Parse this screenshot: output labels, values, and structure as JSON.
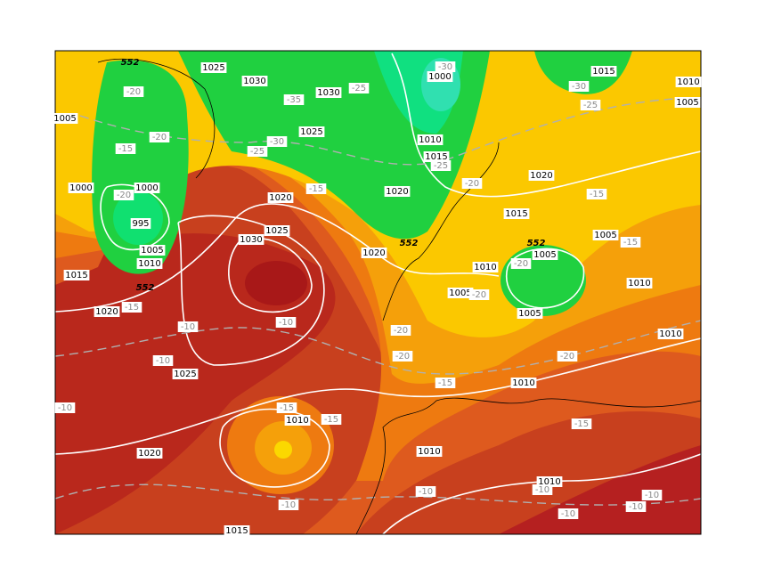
{
  "map": {
    "pressure_labels": [
      "1025",
      "1030",
      "1030",
      "1000",
      "1015",
      "1010",
      "1005",
      "1005",
      "1025",
      "1010",
      "1015",
      "1000",
      "1000",
      "995",
      "1005",
      "1010",
      "1020",
      "1025",
      "1030",
      "1020",
      "1020",
      "1015",
      "1005",
      "1005",
      "1010",
      "1020",
      "1005",
      "1005",
      "1015",
      "1020",
      "1010",
      "1010",
      "1025",
      "1010",
      "1010",
      "1010",
      "1020",
      "1010",
      "1015"
    ],
    "temperature_labels": [
      "-20",
      "-35",
      "-25",
      "-30",
      "-30",
      "-25",
      "-15",
      "-20",
      "-30",
      "-25",
      "-15",
      "-20",
      "-20",
      "-25",
      "-15",
      "-15",
      "-20",
      "-20",
      "-15",
      "-10",
      "-10",
      "-10",
      "-20",
      "-20",
      "-20",
      "-15",
      "-15",
      "-15",
      "-15",
      "-10",
      "-10",
      "-10",
      "-10",
      "-10",
      "-10",
      "-10"
    ],
    "height_labels": [
      "552",
      "552",
      "552",
      "552"
    ]
  }
}
